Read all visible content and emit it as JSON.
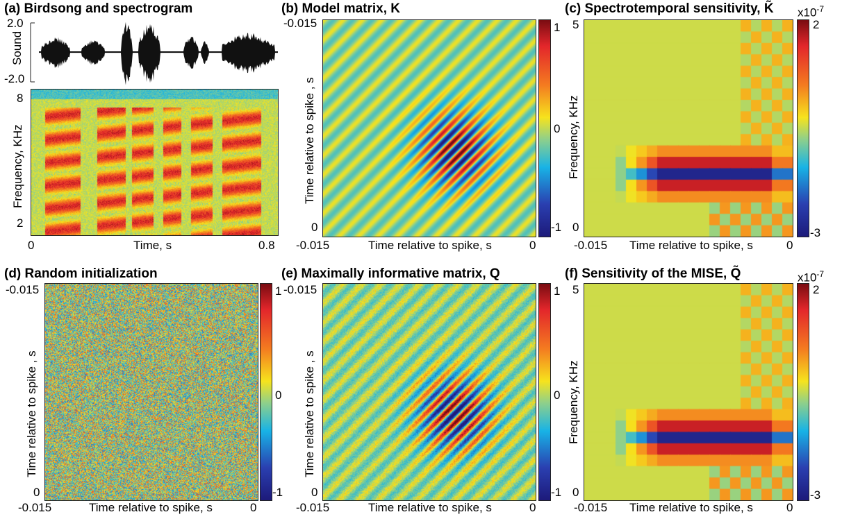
{
  "panels": {
    "a": {
      "title": "(a) Birdsong and spectrogram",
      "sound_label": "Sound",
      "sound_ticks": [
        "2.0",
        "-2.0"
      ],
      "freq_label": "Frequency, KHz",
      "freq_ticks": [
        "8",
        "2"
      ],
      "x_label": "Time, s",
      "x_ticks": [
        "0",
        "0.8"
      ]
    },
    "b": {
      "title": "(b) Model matrix, K",
      "x_label": "Time relative to spike, s",
      "y_label": "Time relative to spike , s",
      "x_ticks": [
        "-0.015",
        "0"
      ],
      "y_ticks": [
        "-0.015",
        "0"
      ],
      "cbar_ticks": [
        "1",
        "0",
        "-1"
      ]
    },
    "c": {
      "title": "(c) Spectrotemporal sensitivity, K̃",
      "x_label": "Time relative to spike, s",
      "y_label": "Frequency, KHz",
      "x_ticks": [
        "-0.015",
        "0"
      ],
      "y_ticks": [
        "5",
        "0"
      ],
      "cbar_scale": "x10",
      "cbar_exp": "-7",
      "cbar_ticks": [
        "2",
        "-3"
      ]
    },
    "d": {
      "title": "(d) Random initialization",
      "x_label": "Time relative to spike, s",
      "y_label": "Time relative to spike , s",
      "x_ticks": [
        "-0.015",
        "0"
      ],
      "y_ticks": [
        "-0.015",
        "0"
      ],
      "cbar_ticks": [
        "1",
        "0",
        "-1"
      ]
    },
    "e": {
      "title": "(e) Maximally informative matrix, Q",
      "x_label": "Time relative to spike, s",
      "y_label": "Time relative to spike , s",
      "x_ticks": [
        "-0.015",
        "0"
      ],
      "y_ticks": [
        "-0.015",
        "0"
      ],
      "cbar_ticks": [
        "1",
        "0",
        "-1"
      ]
    },
    "f": {
      "title": "(f) Sensitivity of the MISE, Q̃",
      "x_label": "Time relative to spike, s",
      "y_label": "Frequency, KHz",
      "x_ticks": [
        "-0.015",
        "0"
      ],
      "y_ticks": [
        "5",
        "0"
      ],
      "cbar_scale": "x10",
      "cbar_exp": "-7",
      "cbar_ticks": [
        "2",
        "-3"
      ]
    }
  },
  "chart_data": [
    {
      "type": "line",
      "title": "(a) Birdsong and spectrogram",
      "ylabel": "Sound",
      "ylim": [
        -2.0,
        2.0
      ],
      "xlim": [
        0,
        0.8
      ],
      "xlabel": "Time, s"
    },
    {
      "type": "heatmap",
      "title": "",
      "ylabel": "Frequency, KHz",
      "xlabel": "Time, s",
      "xlim": [
        0,
        0.8
      ]
    },
    {
      "type": "heatmap",
      "title": "(b) Model matrix, K",
      "xlabel": "Time relative to spike, s",
      "ylabel": "Time relative to spike , s",
      "xlim": [
        -0.015,
        0
      ],
      "ylim": [
        0,
        -0.015
      ],
      "clim": [
        -1,
        1
      ]
    },
    {
      "type": "heatmap",
      "title": "(c) Spectrotemporal sensitivity, K̃",
      "xlabel": "Time relative to spike, s",
      "ylabel": "Frequency, KHz",
      "xlim": [
        -0.015,
        0
      ],
      "ylim": [
        0,
        5
      ],
      "clim": [
        -3e-07,
        2e-07
      ]
    },
    {
      "type": "heatmap",
      "title": "(d) Random initialization",
      "xlabel": "Time relative to spike, s",
      "ylabel": "Time relative to spike , s",
      "xlim": [
        -0.015,
        0
      ],
      "ylim": [
        0,
        -0.015
      ],
      "clim": [
        -1,
        1
      ]
    },
    {
      "type": "heatmap",
      "title": "(e) Maximally informative matrix, Q",
      "xlabel": "Time relative to spike, s",
      "ylabel": "Time relative to spike , s",
      "xlim": [
        -0.015,
        0
      ],
      "ylim": [
        0,
        -0.015
      ],
      "clim": [
        -1,
        1
      ]
    },
    {
      "type": "heatmap",
      "title": "(f) Sensitivity of the MISE, Q̃",
      "xlabel": "Time relative to spike, s",
      "ylabel": "Frequency, KHz",
      "xlim": [
        -0.015,
        0
      ],
      "ylim": [
        0,
        5
      ],
      "clim": [
        -3e-07,
        2e-07
      ]
    }
  ]
}
